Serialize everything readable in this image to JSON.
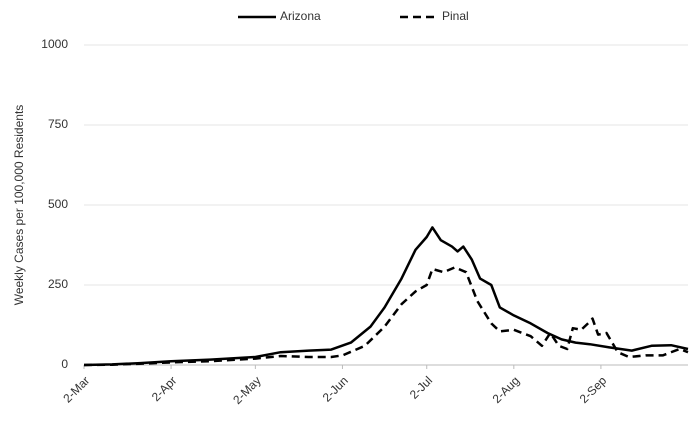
{
  "chart_data": {
    "type": "line",
    "ylabel": "Weekly Cases per 100,000 Residents",
    "xlim": [
      0,
      215
    ],
    "ylim": [
      0,
      1000
    ],
    "xticks": [
      {
        "value": 0,
        "label": "2-Mar"
      },
      {
        "value": 31,
        "label": "2-Apr"
      },
      {
        "value": 61,
        "label": "2-May"
      },
      {
        "value": 92,
        "label": "2-Jun"
      },
      {
        "value": 122,
        "label": "2-Jul"
      },
      {
        "value": 153,
        "label": "2-Aug"
      },
      {
        "value": 184,
        "label": "2-Sep"
      }
    ],
    "yticks": [
      0,
      250,
      500,
      750,
      1000
    ],
    "grid": true,
    "legend": "top",
    "series": [
      {
        "name": "Arizona",
        "color": "#000000",
        "dash": false,
        "x": [
          0,
          10,
          20,
          31,
          45,
          61,
          70,
          80,
          88,
          95,
          102,
          107,
          113,
          118,
          122,
          124,
          127,
          131,
          133,
          135,
          138,
          141,
          145,
          148,
          153,
          159,
          165,
          170,
          175,
          180,
          187,
          195,
          202,
          209,
          215
        ],
        "values": [
          0,
          2,
          6,
          12,
          17,
          25,
          40,
          45,
          48,
          70,
          120,
          180,
          270,
          360,
          400,
          430,
          390,
          370,
          355,
          370,
          330,
          270,
          250,
          180,
          155,
          130,
          100,
          80,
          70,
          65,
          55,
          45,
          60,
          62,
          50
        ]
      },
      {
        "name": "Pinal",
        "color": "#000000",
        "dash": true,
        "x": [
          0,
          10,
          20,
          31,
          45,
          61,
          70,
          80,
          88,
          92,
          100,
          107,
          113,
          118,
          122,
          124,
          128,
          132,
          136,
          140,
          145,
          148,
          153,
          159,
          163,
          166,
          169,
          172,
          174,
          177,
          180,
          181,
          183,
          186,
          190,
          194,
          200,
          206,
          212,
          215
        ],
        "values": [
          0,
          1,
          4,
          8,
          12,
          20,
          28,
          25,
          25,
          30,
          60,
          120,
          190,
          230,
          250,
          300,
          290,
          305,
          290,
          200,
          130,
          105,
          110,
          90,
          60,
          100,
          60,
          50,
          115,
          110,
          135,
          145,
          95,
          100,
          40,
          25,
          30,
          30,
          50,
          40
        ]
      }
    ]
  }
}
